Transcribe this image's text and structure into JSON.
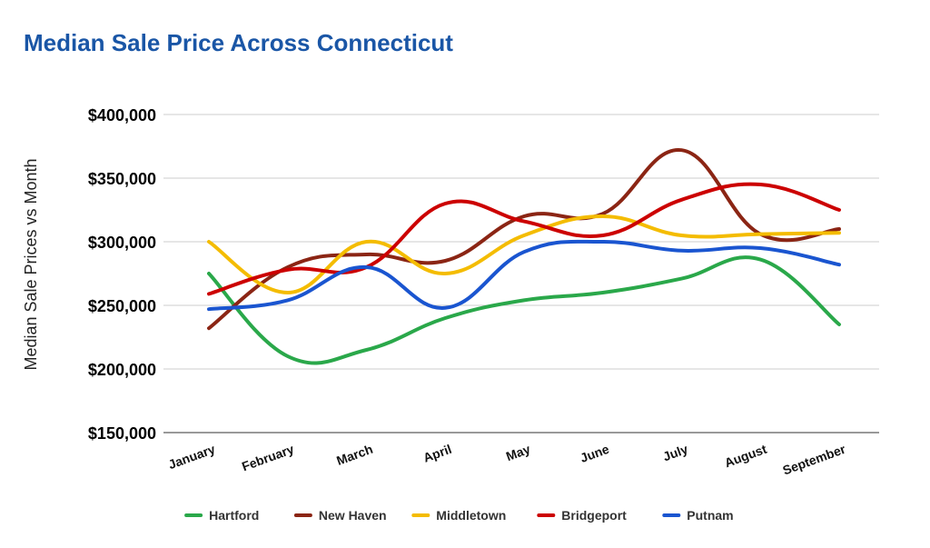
{
  "chart_data": {
    "type": "line",
    "title": "Median Sale Price Across Connecticut",
    "ylabel": "Median Sale Prices vs Month",
    "xlabel": "",
    "categories": [
      "January",
      "February",
      "March",
      "April",
      "May",
      "June",
      "July",
      "August",
      "September"
    ],
    "ylim": [
      150000,
      400000
    ],
    "yticks": [
      150000,
      200000,
      250000,
      300000,
      350000,
      400000
    ],
    "ytick_labels": [
      "$150,000",
      "$200,000",
      "$250,000",
      "$300,000",
      "$350,000",
      "$400,000"
    ],
    "grid": true,
    "smooth": true,
    "legend_position": "bottom",
    "series": [
      {
        "name": "Hartford",
        "color": "#2aa84a",
        "values": [
          275000,
          210000,
          215000,
          240000,
          254000,
          260000,
          271000,
          286000,
          235000
        ]
      },
      {
        "name": "New Haven",
        "color": "#8b2514",
        "values": [
          232000,
          280000,
          290000,
          285000,
          320000,
          322000,
          372000,
          306000,
          310000
        ]
      },
      {
        "name": "Middletown",
        "color": "#f4bc00",
        "values": [
          300000,
          260000,
          300000,
          275000,
          305000,
          320000,
          305000,
          306000,
          307000
        ]
      },
      {
        "name": "Bridgeport",
        "color": "#cc0000",
        "values": [
          259000,
          278000,
          280000,
          330000,
          316000,
          305000,
          333000,
          345000,
          325000
        ]
      },
      {
        "name": "Putnam",
        "color": "#1a55d0",
        "values": [
          247000,
          254000,
          280000,
          248000,
          292000,
          300000,
          293000,
          295000,
          282000
        ]
      }
    ]
  }
}
